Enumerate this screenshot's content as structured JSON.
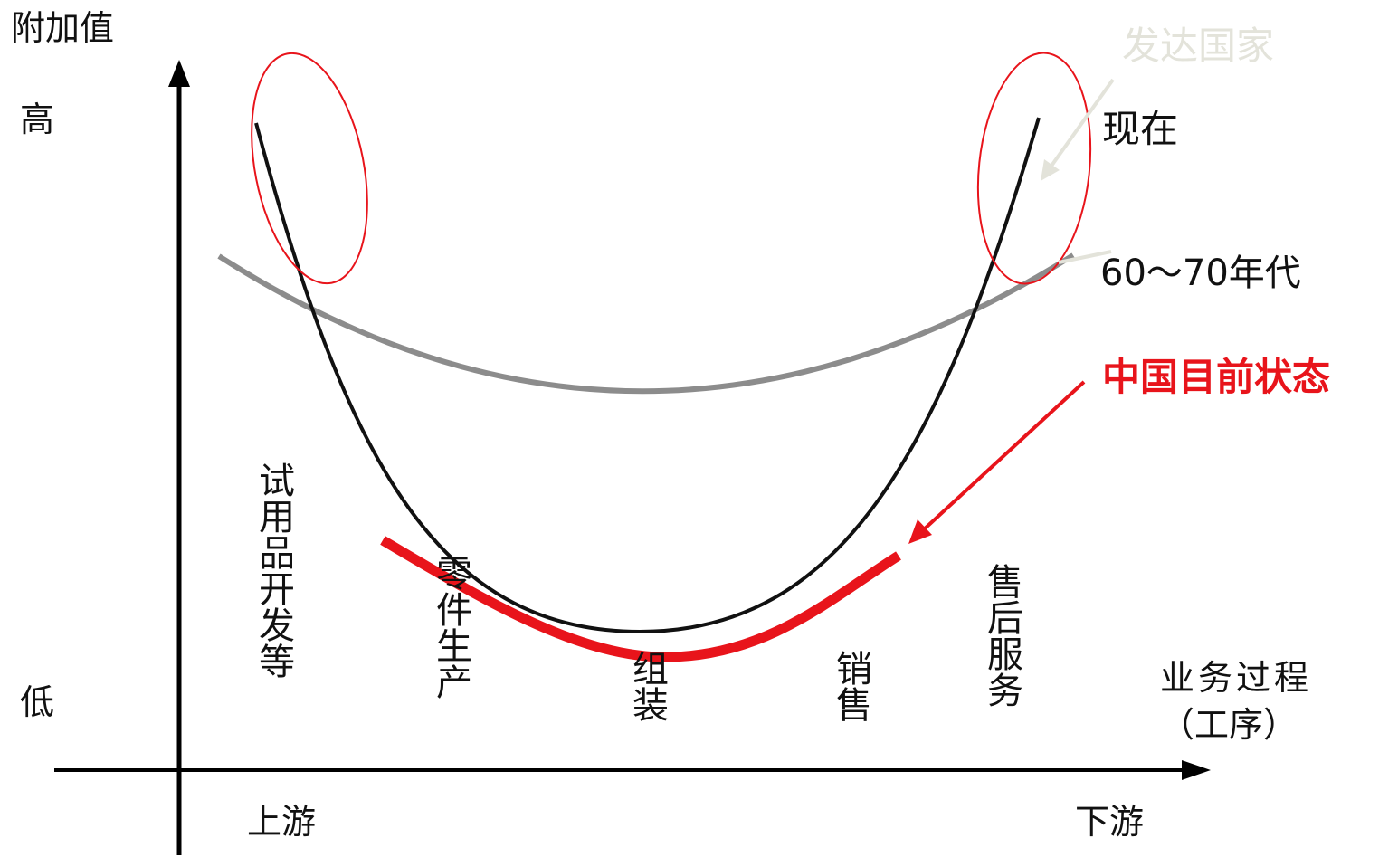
{
  "axes": {
    "y_title": "附加值",
    "y_high": "高",
    "y_low": "低",
    "x_title_line1": "业务过程",
    "x_title_line2": "（工序）",
    "x_start": "上游",
    "x_end": "下游"
  },
  "stages": [
    {
      "label": "试用品开发等"
    },
    {
      "label": "零件生产"
    },
    {
      "label": "组装"
    },
    {
      "label": "销售"
    },
    {
      "label": "售后服务"
    }
  ],
  "curves": [
    {
      "label": "发达国家",
      "color": "#e3e3da"
    },
    {
      "label": "现在",
      "color": "#111111"
    },
    {
      "label": "60～70年代",
      "color": "#8c8c8c"
    },
    {
      "label": "中国目前状态",
      "color": "#e8141b"
    }
  ]
}
